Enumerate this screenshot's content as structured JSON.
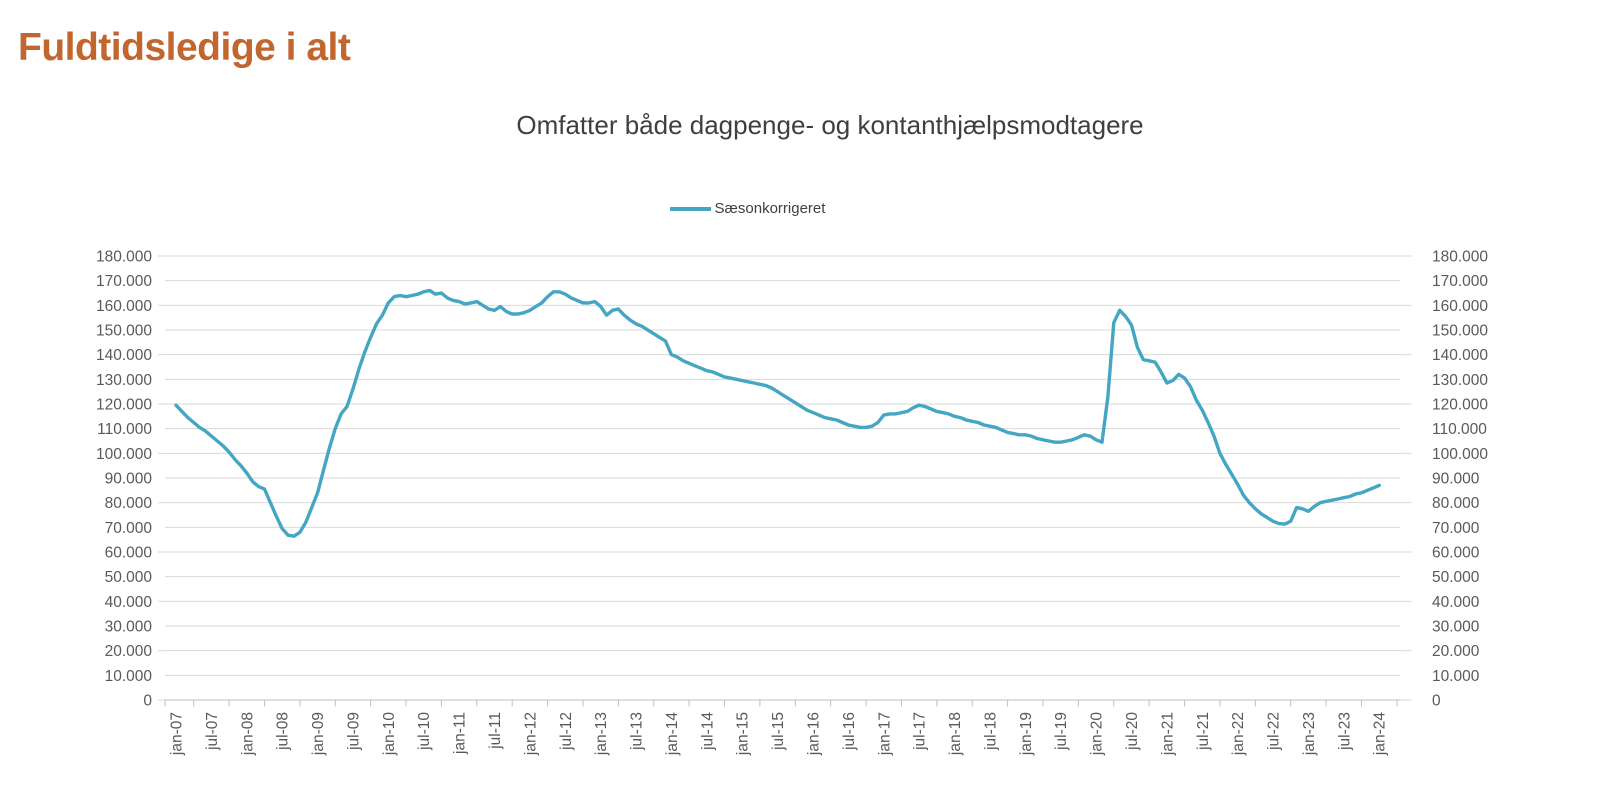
{
  "page_title": "Fuldtidsledige i alt",
  "chart": {
    "subtitle": "Omfatter både dagpenge- og kontanthjælpsmodtagere",
    "legend": {
      "label": "Sæsonkorrigeret"
    }
  },
  "colors": {
    "title": "#C1662E",
    "subtitle_text": "#3F3F3F",
    "axis_label": "#595959",
    "gridline": "#D9D9D9",
    "axis_line": "#BFBFBF",
    "background": "#FFFFFF",
    "series_line": "#45A6C4"
  },
  "chart_data": {
    "type": "line",
    "title": "Omfatter både dagpenge- og kontanthjælpsmodtagere",
    "xlabel": "",
    "ylabel": "",
    "ylim": [
      0,
      180000
    ],
    "y_tick_step": 10000,
    "y_tick_labels": [
      "0",
      "10.000",
      "20.000",
      "30.000",
      "40.000",
      "50.000",
      "60.000",
      "70.000",
      "80.000",
      "90.000",
      "100.000",
      "110.000",
      "120.000",
      "130.000",
      "140.000",
      "150.000",
      "160.000",
      "170.000",
      "180.000"
    ],
    "y_axis_sides": "both",
    "grid": "horizontal",
    "legend_position": "top-center",
    "x_frequency": "monthly",
    "x_start": "jan-07",
    "x_end": "jan-24",
    "x_tick_labels": [
      "jan-07",
      "jul-07",
      "jan-08",
      "jul-08",
      "jan-09",
      "jul-09",
      "jan-10",
      "jul-10",
      "jan-11",
      "jul-11",
      "jan-12",
      "jul-12",
      "jan-13",
      "jul-13",
      "jan-14",
      "jul-14",
      "jan-15",
      "jul-15",
      "jan-16",
      "jul-16",
      "jan-17",
      "jul-17",
      "jan-18",
      "jul-18",
      "jan-19",
      "jul-19",
      "jan-20",
      "jul-20",
      "jan-21",
      "jul-21",
      "jan-22",
      "jul-22",
      "jan-23",
      "jul-23",
      "jan-24"
    ],
    "x_ticks_every_n_months": 6,
    "series": [
      {
        "name": "Sæsonkorrigeret",
        "color": "#45A6C4",
        "values": [
          119500,
          117000,
          114500,
          112500,
          110500,
          109000,
          107000,
          105000,
          103000,
          100500,
          97500,
          95000,
          92000,
          88500,
          86500,
          85500,
          80000,
          74500,
          69500,
          66800,
          66400,
          68000,
          72000,
          78000,
          84000,
          93000,
          102000,
          110000,
          116000,
          119000,
          126000,
          134000,
          141000,
          147000,
          152500,
          156000,
          161000,
          163500,
          164000,
          163500,
          164000,
          164500,
          165500,
          166000,
          164500,
          165000,
          163000,
          162000,
          161500,
          160500,
          161000,
          161500,
          160000,
          158500,
          158000,
          159500,
          157500,
          156500,
          156500,
          157000,
          158000,
          159500,
          161000,
          163500,
          165500,
          165500,
          164500,
          163000,
          162000,
          161000,
          161000,
          161500,
          159500,
          156000,
          158000,
          158500,
          156000,
          154000,
          152500,
          151500,
          150000,
          148500,
          147000,
          145500,
          140000,
          139000,
          137500,
          136500,
          135500,
          134500,
          133500,
          133000,
          132000,
          131000,
          130500,
          130000,
          129500,
          129000,
          128500,
          128000,
          127500,
          126500,
          125000,
          123500,
          122000,
          120500,
          119000,
          117500,
          116500,
          115500,
          114500,
          114000,
          113500,
          112500,
          111500,
          111000,
          110500,
          110500,
          111000,
          112500,
          115500,
          116000,
          116000,
          116500,
          117000,
          118500,
          119500,
          119000,
          118000,
          117000,
          116500,
          116000,
          115000,
          114500,
          113500,
          113000,
          112500,
          111500,
          111000,
          110500,
          109500,
          108500,
          108000,
          107500,
          107500,
          107000,
          106000,
          105500,
          105000,
          104500,
          104500,
          105000,
          105500,
          106500,
          107500,
          107000,
          105500,
          104500,
          123000,
          153000,
          158000,
          155500,
          152000,
          143000,
          138000,
          137500,
          137000,
          133000,
          128500,
          129500,
          132000,
          130500,
          127000,
          121500,
          117500,
          112500,
          107000,
          100000,
          95500,
          91500,
          87500,
          83000,
          80000,
          77500,
          75500,
          74000,
          72500,
          71500,
          71300,
          72500,
          78000,
          77500,
          76500,
          78500,
          80000,
          80500,
          81000,
          81500,
          82000,
          82500,
          83500,
          84000,
          85000,
          86000,
          87000
        ]
      }
    ]
  }
}
